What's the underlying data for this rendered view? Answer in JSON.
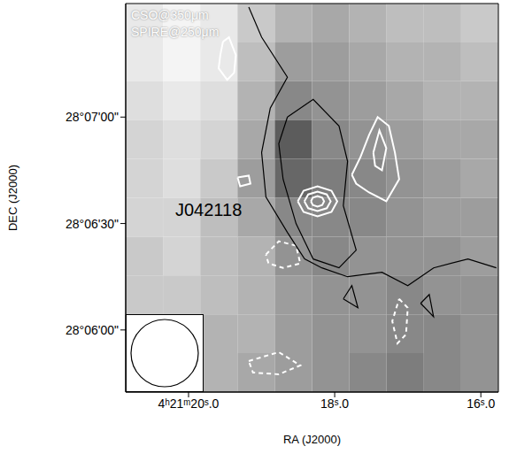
{
  "chart_data": {
    "type": "contour_map",
    "x_label": "RA (J2000)",
    "y_label": "DEC (J2000)",
    "xlim": [
      20.86,
      15.76
    ],
    "xticks": [
      {
        "value": 20,
        "label": "4ʰ21ᵐ20ˢ.0"
      },
      {
        "value": 18,
        "label": "18ˢ.0"
      },
      {
        "value": 16,
        "label": "16ˢ.0"
      }
    ],
    "ylim": [
      342.5,
      452
    ],
    "yticks": [
      {
        "value": 360,
        "label": "28°06'00\""
      },
      {
        "value": 390,
        "label": "28°06'30\""
      },
      {
        "value": 420,
        "label": "28°07'00\""
      }
    ],
    "annotations": [
      {
        "text": "J042118"
      }
    ],
    "cells": {
      "x": [
        20.605,
        20.095,
        19.585,
        19.075,
        18.565,
        18.055,
        17.545,
        17.035,
        16.525,
        16.015
      ],
      "y": [
        446.525,
        435.575,
        424.625,
        413.675,
        402.725,
        391.775,
        380.825,
        369.875,
        358.925,
        347.975
      ],
      "values": [
        [
          0.1,
          0.05,
          0.1,
          0.25,
          0.35,
          0.4,
          0.35,
          0.3,
          0.3,
          0.25
        ],
        [
          0.1,
          0.05,
          0.1,
          0.3,
          0.45,
          0.45,
          0.4,
          0.35,
          0.35,
          0.3
        ],
        [
          0.15,
          0.1,
          0.15,
          0.35,
          0.55,
          0.5,
          0.45,
          0.4,
          0.35,
          0.35
        ],
        [
          0.2,
          0.15,
          0.2,
          0.4,
          0.75,
          0.55,
          0.5,
          0.45,
          0.4,
          0.4
        ],
        [
          0.2,
          0.15,
          0.25,
          0.45,
          0.7,
          0.6,
          0.55,
          0.5,
          0.45,
          0.4
        ],
        [
          0.2,
          0.2,
          0.3,
          0.4,
          0.55,
          0.55,
          0.55,
          0.5,
          0.45,
          0.45
        ],
        [
          0.25,
          0.2,
          0.3,
          0.35,
          0.5,
          0.55,
          0.5,
          0.5,
          0.5,
          0.45
        ],
        [
          0.25,
          0.25,
          0.3,
          0.35,
          0.45,
          0.5,
          0.5,
          0.55,
          0.5,
          0.5
        ],
        [
          0.3,
          0.3,
          0.35,
          0.35,
          0.45,
          0.5,
          0.5,
          0.55,
          0.55,
          0.5
        ],
        [
          0.3,
          0.35,
          0.35,
          0.4,
          0.45,
          0.5,
          0.55,
          0.6,
          0.55,
          0.5
        ]
      ]
    },
    "series": [
      {
        "name": "CSO@350μm",
        "color": "#ffffff",
        "lines": [
          {
            "line_style": "solid",
            "points": [
              [
                18.505,
                396.25
              ],
              [
                18.426,
                399.25
              ],
              [
                18.235,
                400.5
              ],
              [
                18.044,
                399.25
              ],
              [
                17.965,
                396.25
              ],
              [
                18.044,
                393.25
              ],
              [
                18.235,
                392.0
              ],
              [
                18.426,
                393.25
              ],
              [
                18.505,
                396.25
              ]
            ]
          },
          {
            "line_style": "solid",
            "points": [
              [
                18.415,
                396.25
              ],
              [
                18.362,
                398.2
              ],
              [
                18.235,
                399.0
              ],
              [
                18.108,
                398.2
              ],
              [
                18.055,
                396.25
              ],
              [
                18.108,
                394.3
              ],
              [
                18.235,
                393.5
              ],
              [
                18.362,
                394.3
              ],
              [
                18.415,
                396.25
              ]
            ]
          },
          {
            "line_style": "solid",
            "points": [
              [
                18.325,
                396.25
              ],
              [
                18.299,
                397.3
              ],
              [
                18.235,
                397.75
              ],
              [
                18.171,
                397.3
              ],
              [
                18.145,
                396.25
              ],
              [
                18.171,
                395.2
              ],
              [
                18.235,
                394.75
              ],
              [
                18.299,
                395.2
              ],
              [
                18.325,
                396.25
              ]
            ]
          },
          {
            "line_style": "solid",
            "points": [
              [
                17.765,
                403.75
              ],
              [
                17.647,
                408.75
              ],
              [
                17.529,
                415.0
              ],
              [
                17.412,
                420.0
              ],
              [
                17.259,
                417.5
              ],
              [
                17.176,
                410.0
              ],
              [
                17.118,
                402.5
              ],
              [
                17.294,
                396.25
              ],
              [
                17.529,
                398.75
              ],
              [
                17.706,
                401.25
              ],
              [
                17.765,
                403.75
              ]
            ]
          },
          {
            "line_style": "solid",
            "points": [
              [
                17.471,
                410.0
              ],
              [
                17.388,
                416.25
              ],
              [
                17.294,
                411.25
              ],
              [
                17.353,
                405.0
              ],
              [
                17.447,
                406.25
              ],
              [
                17.471,
                410.0
              ]
            ]
          },
          {
            "line_style": "solid",
            "points": [
              [
                19.529,
                441.25
              ],
              [
                19.447,
                442.5
              ],
              [
                19.353,
                437.5
              ],
              [
                19.376,
                432.5
              ],
              [
                19.471,
                430.5
              ],
              [
                19.588,
                433.75
              ],
              [
                19.565,
                437.5
              ],
              [
                19.529,
                441.25
              ]
            ]
          },
          {
            "line_style": "solid",
            "points": [
              [
                19.329,
                403.0
              ],
              [
                19.176,
                403.5
              ],
              [
                19.153,
                401.25
              ],
              [
                19.294,
                400.5
              ],
              [
                19.329,
                403.0
              ]
            ]
          },
          {
            "line_style": "dashed",
            "points": [
              [
                18.941,
                381.25
              ],
              [
                18.765,
                385.0
              ],
              [
                18.529,
                383.75
              ],
              [
                18.471,
                378.75
              ],
              [
                18.706,
                377.5
              ],
              [
                18.906,
                378.75
              ],
              [
                18.941,
                381.25
              ]
            ]
          },
          {
            "line_style": "dashed",
            "points": [
              [
                17.118,
                368.75
              ],
              [
                17.0,
                366.25
              ],
              [
                17.024,
                358.75
              ],
              [
                17.141,
                356.25
              ],
              [
                17.212,
                362.5
              ],
              [
                17.118,
                368.75
              ]
            ]
          },
          {
            "line_style": "dashed",
            "points": [
              [
                19.176,
                351.25
              ],
              [
                18.765,
                353.75
              ],
              [
                18.471,
                350.0
              ],
              [
                18.765,
                347.5
              ],
              [
                19.118,
                348.0
              ],
              [
                19.176,
                351.25
              ]
            ]
          }
        ]
      },
      {
        "name": "SPIRE@250μm",
        "color": "#000000",
        "lines": [
          {
            "line_style": "solid",
            "points": [
              [
                19.176,
                451.0
              ],
              [
                19.0,
                442.5
              ],
              [
                18.647,
                431.25
              ],
              [
                18.882,
                422.5
              ],
              [
                19.0,
                410.0
              ],
              [
                18.941,
                397.5
              ],
              [
                18.647,
                387.5
              ],
              [
                18.412,
                380.0
              ],
              [
                18.176,
                377.5
              ],
              [
                17.824,
                375.0
              ],
              [
                17.353,
                376.25
              ],
              [
                17.0,
                372.5
              ],
              [
                16.647,
                377.5
              ],
              [
                16.176,
                380.0
              ],
              [
                15.788,
                377.5
              ]
            ]
          },
          {
            "line_style": "solid",
            "points": [
              [
                18.647,
                420.0
              ],
              [
                18.294,
                425.0
              ],
              [
                17.941,
                417.5
              ],
              [
                17.824,
                407.5
              ],
              [
                17.882,
                395.0
              ],
              [
                17.706,
                382.5
              ],
              [
                17.941,
                377.5
              ],
              [
                18.294,
                380.0
              ],
              [
                18.529,
                390.0
              ],
              [
                18.706,
                402.5
              ],
              [
                18.765,
                412.5
              ],
              [
                18.647,
                420.0
              ]
            ]
          },
          {
            "line_style": "solid",
            "points": [
              [
                17.882,
                368.75
              ],
              [
                17.765,
                372.5
              ],
              [
                17.682,
                366.25
              ],
              [
                17.882,
                368.75
              ]
            ]
          },
          {
            "line_style": "solid",
            "points": [
              [
                16.824,
                367.5
              ],
              [
                16.706,
                370.0
              ],
              [
                16.647,
                363.75
              ],
              [
                16.824,
                367.5
              ]
            ]
          }
        ]
      }
    ]
  }
}
